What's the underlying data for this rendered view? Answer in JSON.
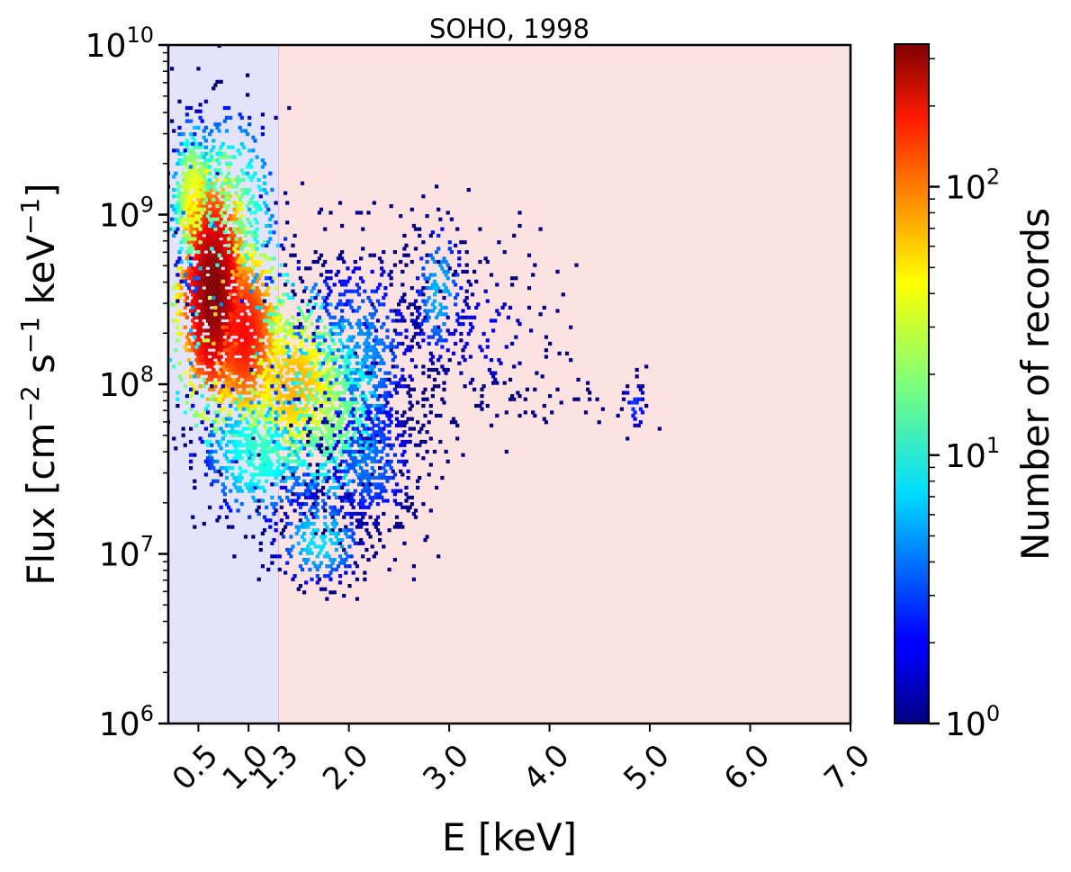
{
  "chart_data": {
    "type": "heatmap",
    "title": "SOHO, 1998",
    "xlabel": "E [keV]",
    "ylabel": "Flux [cm",
    "ylabel_sup1": "−2",
    "ylabel_mid": " s",
    "ylabel_sup2": "−1",
    "ylabel_end": " keV",
    "ylabel_sup3": "−1",
    "ylabel_close": "]",
    "colorbar_label": "Number of records",
    "xlim": [
      0.2,
      7.0
    ],
    "ylim": [
      1000000,
      10000000000
    ],
    "yscale": "log",
    "x_ticks": [
      {
        "value": 0.5,
        "label": "0.5"
      },
      {
        "value": 1.0,
        "label": "1.0"
      },
      {
        "value": 1.3,
        "label": "1.3"
      },
      {
        "value": 2.0,
        "label": "2.0"
      },
      {
        "value": 3.0,
        "label": "3.0"
      },
      {
        "value": 4.0,
        "label": "4.0"
      },
      {
        "value": 5.0,
        "label": "5.0"
      },
      {
        "value": 6.0,
        "label": "6.0"
      },
      {
        "value": 7.0,
        "label": "7.0"
      }
    ],
    "y_ticks": [
      {
        "value": 1000000,
        "base": "10",
        "exp": "6"
      },
      {
        "value": 10000000,
        "base": "10",
        "exp": "7"
      },
      {
        "value": 100000000,
        "base": "10",
        "exp": "8"
      },
      {
        "value": 1000000000,
        "base": "10",
        "exp": "9"
      },
      {
        "value": 10000000000,
        "base": "10",
        "exp": "10"
      }
    ],
    "colorbar_ticks": [
      {
        "value": 1,
        "base": "10",
        "exp": "0"
      },
      {
        "value": 10,
        "base": "10",
        "exp": "1"
      },
      {
        "value": 100,
        "base": "10",
        "exp": "2"
      }
    ],
    "colorbar_range": [
      1,
      340
    ],
    "colormap": "jet",
    "background_regions": [
      {
        "x_from": 0.2,
        "x_to": 1.3,
        "color": "#e3e3fb"
      },
      {
        "x_from": 1.3,
        "x_to": 7.0,
        "color": "#fde2e2"
      }
    ],
    "density_clusters": [
      {
        "x": 0.65,
        "y": 350000000,
        "sx": 0.17,
        "sy": 0.34,
        "peak": 340,
        "n": 1200
      },
      {
        "x": 0.95,
        "y": 200000000,
        "sx": 0.2,
        "sy": 0.28,
        "peak": 160,
        "n": 900
      },
      {
        "x": 0.45,
        "y": 1200000000,
        "sx": 0.1,
        "sy": 0.22,
        "peak": 40,
        "n": 500
      },
      {
        "x": 0.8,
        "y": 1000000000,
        "sx": 0.25,
        "sy": 0.3,
        "peak": 20,
        "n": 500
      },
      {
        "x": 1.45,
        "y": 100000000,
        "sx": 0.3,
        "sy": 0.26,
        "peak": 60,
        "n": 700
      },
      {
        "x": 1.8,
        "y": 70000000,
        "sx": 0.3,
        "sy": 0.3,
        "peak": 20,
        "n": 600
      },
      {
        "x": 1.1,
        "y": 40000000,
        "sx": 0.3,
        "sy": 0.22,
        "peak": 12,
        "n": 500
      },
      {
        "x": 2.1,
        "y": 150000000,
        "sx": 0.35,
        "sy": 0.35,
        "peak": 5,
        "n": 600
      },
      {
        "x": 2.2,
        "y": 35000000,
        "sx": 0.3,
        "sy": 0.25,
        "peak": 4,
        "n": 500
      },
      {
        "x": 1.7,
        "y": 12000000,
        "sx": 0.25,
        "sy": 0.15,
        "peak": 8,
        "n": 250
      },
      {
        "x": 2.9,
        "y": 350000000,
        "sx": 0.15,
        "sy": 0.25,
        "peak": 6,
        "n": 180
      },
      {
        "x": 3.3,
        "y": 200000000,
        "sx": 0.5,
        "sy": 0.3,
        "peak": 2,
        "n": 200
      },
      {
        "x": 4.85,
        "y": 75000000,
        "sx": 0.08,
        "sy": 0.1,
        "peak": 3,
        "n": 35
      },
      {
        "x": 4.0,
        "y": 80000000,
        "sx": 0.35,
        "sy": 0.1,
        "peak": 1,
        "n": 30
      }
    ]
  }
}
